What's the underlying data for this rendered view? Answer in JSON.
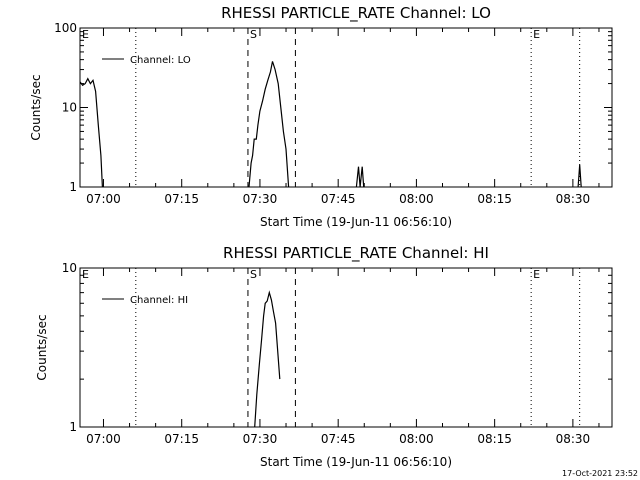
{
  "footer_text": "17-Oct-2021 23:52",
  "chart_data": [
    {
      "type": "line",
      "title": "RHESSI PARTICLE_RATE Channel: LO",
      "xlabel": "Start Time (19-Jun-11 06:56:10)",
      "ylabel": "Counts/sec",
      "y_scale": "log",
      "ylim": [
        1,
        100
      ],
      "y_ticks": [
        {
          "value": 1,
          "label": "1"
        },
        {
          "value": 10,
          "label": "10"
        },
        {
          "value": 100,
          "label": "100"
        }
      ],
      "xlim_minutes": [
        -4.5,
        97.5
      ],
      "x_ticks": [
        {
          "value": 0,
          "label": "07:00"
        },
        {
          "value": 15,
          "label": "07:15"
        },
        {
          "value": 30,
          "label": "07:30"
        },
        {
          "value": 45,
          "label": "07:45"
        },
        {
          "value": 60,
          "label": "08:00"
        },
        {
          "value": 75,
          "label": "08:15"
        },
        {
          "value": 90,
          "label": "08:30"
        }
      ],
      "legend": {
        "position": "top-left",
        "entries": [
          "Channel: LO"
        ]
      },
      "markers": [
        {
          "label": "E",
          "minute": -4.5,
          "style": "none"
        },
        {
          "label": "",
          "minute": 6.2,
          "style": "dotted"
        },
        {
          "label": "S",
          "minute": 27.7,
          "style": "dashed"
        },
        {
          "label": "",
          "minute": 36.8,
          "style": "dashed"
        },
        {
          "label": "E",
          "minute": 82.0,
          "style": "dotted"
        },
        {
          "label": "",
          "minute": 91.3,
          "style": "dotted"
        }
      ],
      "series": [
        {
          "name": "Channel: LO",
          "segments": [
            [
              [
                -4.5,
                21
              ],
              [
                -4.0,
                19
              ],
              [
                -3.5,
                20
              ],
              [
                -3.0,
                23
              ],
              [
                -2.5,
                20
              ],
              [
                -2.0,
                22
              ],
              [
                -1.5,
                16
              ],
              [
                -1.0,
                6
              ],
              [
                -0.5,
                2.5
              ],
              [
                -0.2,
                1
              ]
            ],
            [
              [
                27.9,
                1
              ],
              [
                28.3,
                2
              ],
              [
                28.6,
                2.5
              ],
              [
                28.9,
                4
              ],
              [
                29.3,
                4
              ],
              [
                29.6,
                6
              ],
              [
                30.0,
                9
              ],
              [
                30.5,
                12
              ],
              [
                31.0,
                17
              ],
              [
                31.5,
                22
              ],
              [
                32.0,
                28
              ],
              [
                32.4,
                38
              ],
              [
                32.9,
                30
              ],
              [
                33.5,
                20
              ],
              [
                34.0,
                10
              ],
              [
                34.5,
                5
              ],
              [
                35.0,
                3
              ],
              [
                35.5,
                1
              ]
            ],
            [
              [
                48.5,
                1
              ],
              [
                48.9,
                1.8
              ],
              [
                49.2,
                1
              ],
              [
                49.6,
                1.8
              ],
              [
                49.9,
                1
              ]
            ],
            [
              [
                91.0,
                1
              ],
              [
                91.3,
                1.9
              ],
              [
                91.6,
                1
              ]
            ]
          ]
        }
      ]
    },
    {
      "type": "line",
      "title": "RHESSI PARTICLE_RATE Channel: HI",
      "xlabel": "Start Time (19-Jun-11 06:56:10)",
      "ylabel": "Counts/sec",
      "y_scale": "log",
      "ylim": [
        1,
        10
      ],
      "y_ticks": [
        {
          "value": 1,
          "label": "1"
        },
        {
          "value": 10,
          "label": "10"
        }
      ],
      "xlim_minutes": [
        -4.5,
        97.5
      ],
      "x_ticks": [
        {
          "value": 0,
          "label": "07:00"
        },
        {
          "value": 15,
          "label": "07:15"
        },
        {
          "value": 30,
          "label": "07:30"
        },
        {
          "value": 45,
          "label": "07:45"
        },
        {
          "value": 60,
          "label": "08:00"
        },
        {
          "value": 75,
          "label": "08:15"
        },
        {
          "value": 90,
          "label": "08:30"
        }
      ],
      "legend": {
        "position": "top-left",
        "entries": [
          "Channel: HI"
        ]
      },
      "markers": [
        {
          "label": "E",
          "minute": -4.5,
          "style": "none"
        },
        {
          "label": "",
          "minute": 6.2,
          "style": "dotted"
        },
        {
          "label": "S",
          "minute": 27.7,
          "style": "dashed"
        },
        {
          "label": "",
          "minute": 36.8,
          "style": "dashed"
        },
        {
          "label": "E",
          "minute": 82.0,
          "style": "dotted"
        },
        {
          "label": "",
          "minute": 91.3,
          "style": "dotted"
        }
      ],
      "series": [
        {
          "name": "Channel: HI",
          "segments": [
            [
              [
                29.0,
                1
              ],
              [
                29.4,
                1.6
              ],
              [
                29.9,
                2.5
              ],
              [
                30.3,
                3.5
              ],
              [
                30.7,
                5
              ],
              [
                31.0,
                6
              ],
              [
                31.4,
                6.2
              ],
              [
                31.8,
                7
              ],
              [
                32.2,
                6.3
              ],
              [
                32.6,
                5.3
              ],
              [
                33.0,
                4.5
              ],
              [
                33.4,
                3
              ],
              [
                33.8,
                2
              ]
            ]
          ]
        }
      ]
    }
  ]
}
